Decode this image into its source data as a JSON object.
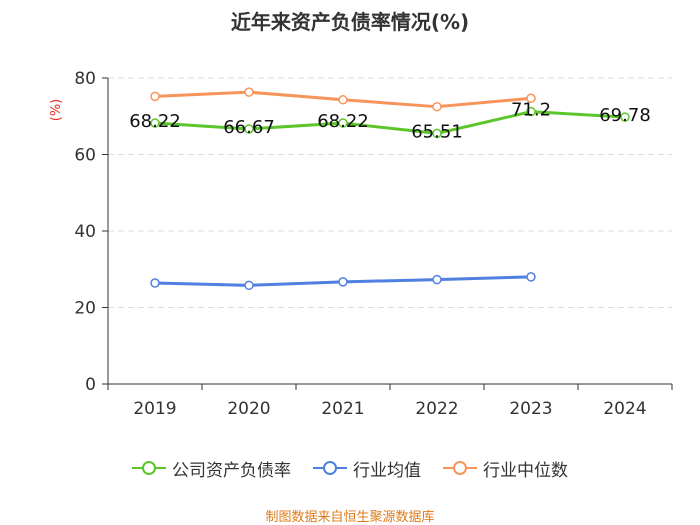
{
  "chart_data": {
    "type": "line",
    "title": "近年来资产负债率情况(%)",
    "ylabel_unit": "(%)",
    "categories": [
      "2019",
      "2020",
      "2021",
      "2022",
      "2023",
      "2024"
    ],
    "ylim": [
      0,
      80
    ],
    "yticks": [
      0,
      20,
      40,
      60,
      80
    ],
    "grid": true,
    "legend_position": "bottom",
    "series": [
      {
        "name": "公司资产负债率",
        "color": "#5cc52b",
        "values": [
          68.22,
          66.67,
          68.22,
          65.51,
          71.2,
          69.78
        ],
        "labels": [
          "68.22",
          "66.67",
          "68.22",
          "65.51",
          "71.2",
          "69.78"
        ]
      },
      {
        "name": "行业均值",
        "color": "#4f7fe0",
        "values": [
          26.4,
          25.8,
          26.7,
          27.3,
          28.0,
          null
        ]
      },
      {
        "name": "行业中位数",
        "color": "#f7945a",
        "values": [
          75.2,
          76.3,
          74.3,
          72.5,
          74.7,
          null
        ]
      }
    ]
  },
  "source": {
    "text": "制图数据来自恒生聚源数据库",
    "color": "#e07b1a"
  },
  "colors": {
    "unit": "#e8281c",
    "axis": "#333333",
    "grid": "#dddddd"
  }
}
